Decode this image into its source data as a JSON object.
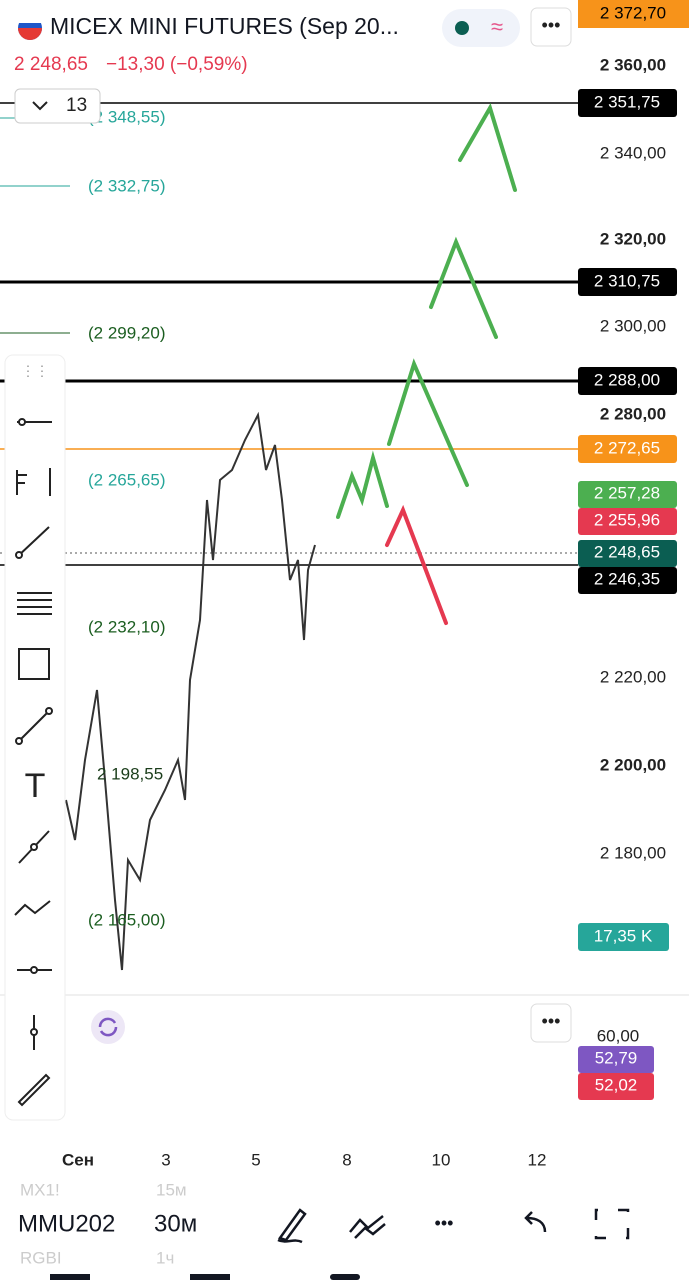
{
  "header": {
    "title": "MICEX MINI FUTURES (Sep 20...",
    "price": "2 248,65",
    "change": "−13,30 (−0,59%)",
    "interval": "13"
  },
  "price_axis": [
    "2 360,00",
    "2 340,00",
    "2 320,00",
    "2 300,00",
    "2 280,00",
    "2 220,00",
    "2 200,00",
    "2 180,00"
  ],
  "price_tags": [
    "2 372,70",
    "2 351,75",
    "2 310,75",
    "2 288,00",
    "2 272,65",
    "2 257,28",
    "2 255,96",
    "2 248,65",
    "2 246,35"
  ],
  "levels": [
    "(2 348,55)",
    "(2 332,75)",
    "(2 299,20)",
    "(2 265,65)",
    "(2 232,10)",
    "2 198,55",
    "(2 165,00)"
  ],
  "volume_tag": "17,35 K",
  "oscillator": {
    "axis": "60,00",
    "values": [
      "52,79",
      "52,02"
    ]
  },
  "x_axis": [
    "Сен",
    "3",
    "5",
    "8",
    "10",
    "12"
  ],
  "bottom_bar": {
    "prev_symbol": "MX1!",
    "prev_timeframe": "15м",
    "symbol": "MMU202",
    "timeframe": "30м",
    "next_symbol": "RGBI",
    "next_timeframe": "1ч"
  }
}
